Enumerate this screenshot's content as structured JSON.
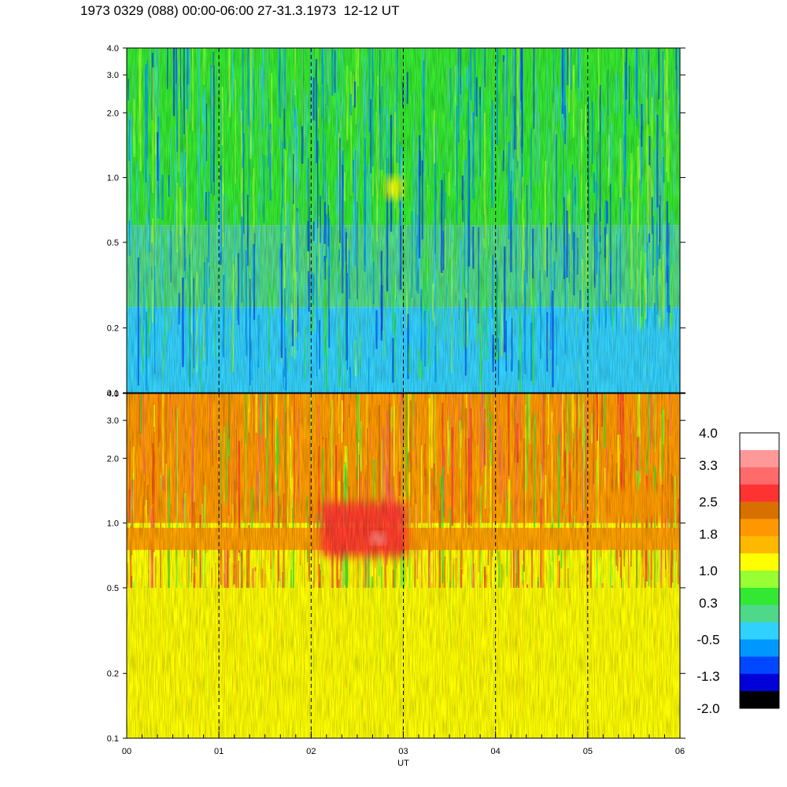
{
  "chart_data": {
    "type": "heatmap",
    "title": "1973 0329 (088) 00:00-06:00 27-31.3.1973  12-12 UT",
    "xlabel": "UT",
    "x_ticks": [
      "00",
      "01",
      "02",
      "03",
      "04",
      "05",
      "06"
    ],
    "xlim": [
      0,
      6
    ],
    "y_scale": "log",
    "ylim": [
      0.1,
      4.0
    ],
    "y_ticks": [
      "0.1",
      "0.2",
      "0.5",
      "1.0",
      "2.0",
      "3.0",
      "4.0"
    ],
    "y_tick_values": [
      0.1,
      0.2,
      0.5,
      1.0,
      2.0,
      3.0,
      4.0
    ],
    "dashed_hour_lines": [
      1,
      2,
      3,
      4,
      5
    ],
    "panels": [
      {
        "name": "upper",
        "value_range": [
          -1.3,
          1.0
        ],
        "dominant_levels": [
          0.3,
          -0.5,
          1.0
        ],
        "features": [
          {
            "x_range": [
              2.8,
              3.0
            ],
            "y_range": [
              0.8,
              1.0
            ],
            "level": 1.0
          },
          {
            "x_range": [
              5.0,
              6.0
            ],
            "y_range": [
              0.1,
              0.2
            ],
            "level": -0.5
          }
        ]
      },
      {
        "name": "lower",
        "value_range": [
          0.3,
          3.3
        ],
        "dominant_levels": [
          1.8,
          1.0,
          0.3
        ],
        "features": [
          {
            "x_range": [
              0.0,
              6.0
            ],
            "y_range": [
              0.75,
              0.95
            ],
            "level": 1.8
          },
          {
            "x_range": [
              2.1,
              3.05
            ],
            "y_range": [
              0.7,
              1.25
            ],
            "level": 2.5
          },
          {
            "x_range": [
              2.65,
              2.8
            ],
            "y_range": [
              0.8,
              0.9
            ],
            "level": 3.3
          },
          {
            "x_range": [
              5.1,
              5.9
            ],
            "y_range": [
              1.05,
              1.45
            ],
            "level": 1.8
          },
          {
            "x_range": [
              0.0,
              6.0
            ],
            "y_range": [
              0.1,
              0.5
            ],
            "level": 1.0
          }
        ]
      }
    ],
    "colorbar": {
      "labels": [
        "4.0",
        "3.3",
        "2.5",
        "1.8",
        "1.0",
        "0.3",
        "-0.5",
        "-1.3",
        "-2.0"
      ],
      "level_values": [
        4.0,
        3.65,
        3.3,
        2.9,
        2.5,
        2.15,
        1.8,
        1.4,
        1.0,
        0.65,
        0.3,
        -0.1,
        -0.5,
        -0.9,
        -1.3,
        -1.65,
        -2.0
      ],
      "colors": [
        "#ffffff",
        "#ff9898",
        "#ff6a6a",
        "#ff3232",
        "#d87000",
        "#ff9800",
        "#ffb800",
        "#ffff00",
        "#98ff32",
        "#32e832",
        "#4ed88a",
        "#30d0ff",
        "#0098ff",
        "#0048ff",
        "#0000d8",
        "#000000"
      ]
    }
  }
}
